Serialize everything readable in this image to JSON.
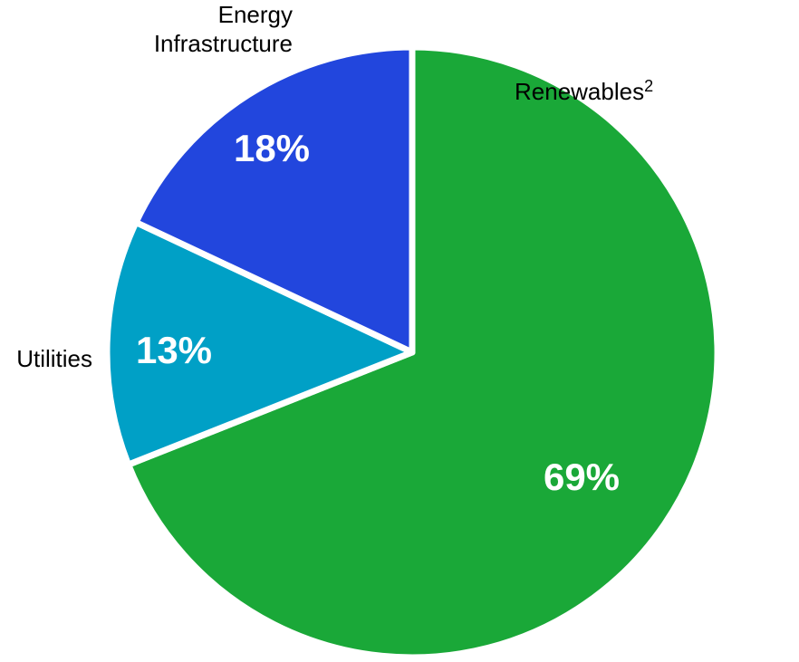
{
  "chart_data": {
    "type": "pie",
    "categories": [
      "Renewables",
      "Utilities",
      "Energy Infrastructure"
    ],
    "values": [
      69,
      13,
      18
    ],
    "value_labels": [
      "69%",
      "13%",
      "18%"
    ],
    "category_labels": [
      {
        "lines": [
          "Renewables"
        ],
        "superscript": "2"
      },
      {
        "lines": [
          "Utilities"
        ],
        "superscript": ""
      },
      {
        "lines": [
          "Energy",
          "Infrastructure"
        ],
        "superscript": ""
      }
    ],
    "colors": [
      "#1aa838",
      "#00a0c6",
      "#2246dd"
    ],
    "start": "12 o'clock",
    "direction": "clockwise",
    "legend": "none"
  }
}
